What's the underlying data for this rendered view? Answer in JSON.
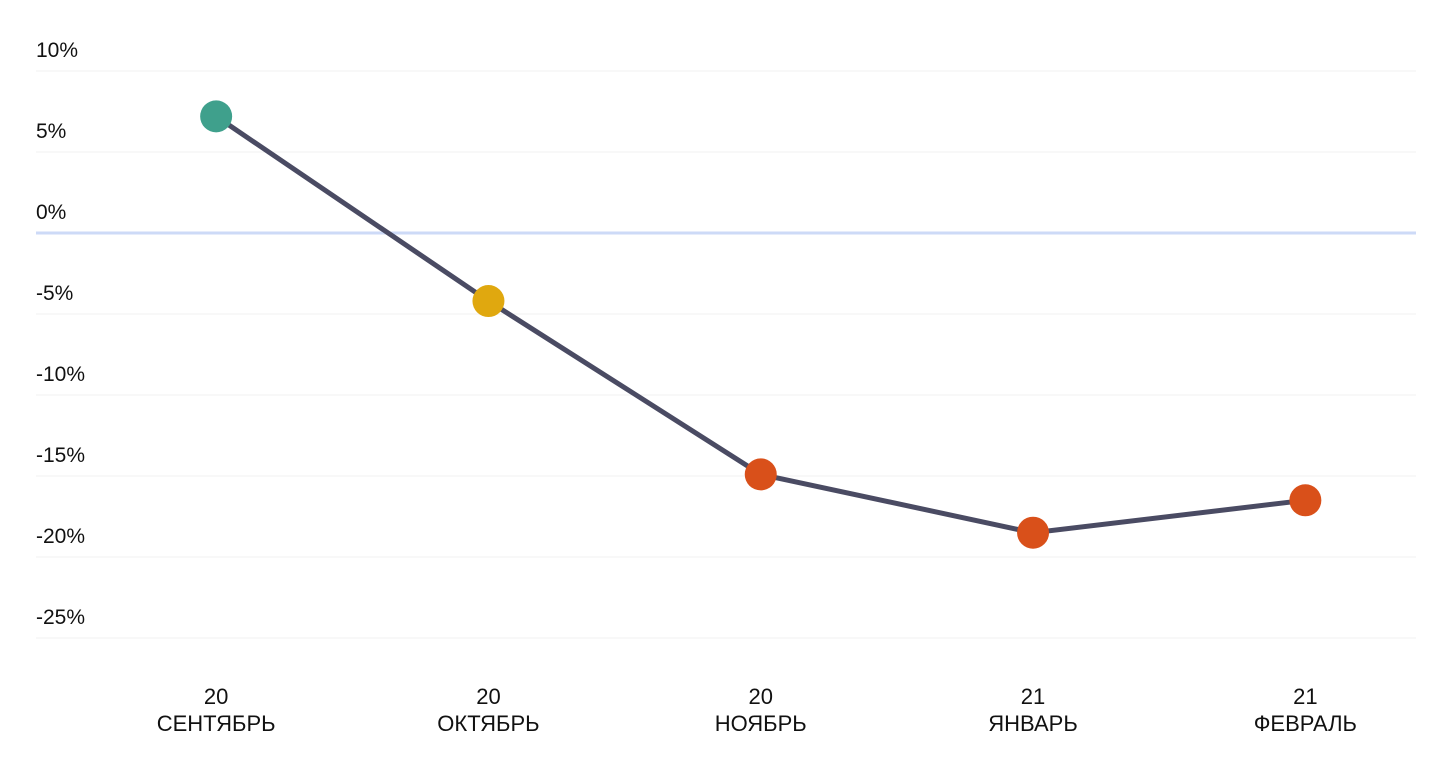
{
  "chart_data": {
    "type": "line",
    "categories": [
      "СЕНТЯБРЬ",
      "ОКТЯБРЬ",
      "НОЯБРЬ",
      "ЯНВАРЬ",
      "ФЕВРАЛЬ"
    ],
    "category_years": [
      "20",
      "20",
      "20",
      "21",
      "21"
    ],
    "series": [
      {
        "color": "#4a4b63",
        "point_colors": [
          "#3fa08c",
          "#e0a80f",
          "#d9501a",
          "#d9501a",
          "#d9501a"
        ],
        "values": [
          7.2,
          -4.2,
          -14.9,
          -18.5,
          -16.5
        ]
      }
    ],
    "ylim": [
      -25,
      10
    ],
    "yticks": [
      {
        "value": 10,
        "label": "10%"
      },
      {
        "value": 5,
        "label": "5%"
      },
      {
        "value": 0,
        "label": "0%"
      },
      {
        "value": -5,
        "label": "-5%"
      },
      {
        "value": -10,
        "label": "-10%"
      },
      {
        "value": -15,
        "label": "-15%"
      },
      {
        "value": -20,
        "label": "-20%"
      },
      {
        "value": -25,
        "label": "-25%"
      }
    ],
    "grid": true,
    "zero_line_color": "#cddaf7"
  }
}
